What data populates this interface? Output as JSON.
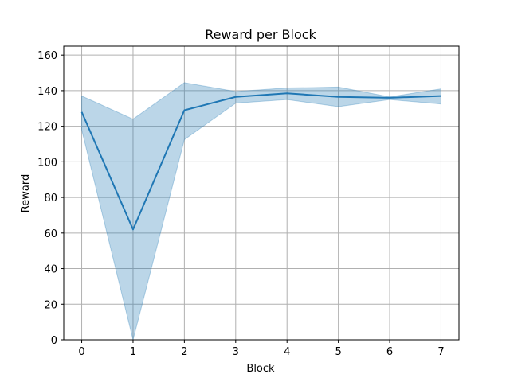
{
  "chart_data": {
    "type": "line",
    "title": "Reward per Block",
    "xlabel": "Block",
    "ylabel": "Reward",
    "x": [
      0,
      1,
      2,
      3,
      4,
      5,
      6,
      7
    ],
    "xlim": [
      -0.35,
      7.35
    ],
    "ylim": [
      0,
      165
    ],
    "xticks": [
      0,
      1,
      2,
      3,
      4,
      5,
      6,
      7
    ],
    "yticks": [
      0,
      20,
      40,
      60,
      80,
      100,
      120,
      140,
      160
    ],
    "grid": true,
    "series": [
      {
        "values": [
          128,
          62,
          129,
          136.5,
          138.5,
          136.5,
          136,
          137
        ],
        "band_upper": [
          137,
          124,
          144.5,
          139.5,
          141.5,
          142,
          136.5,
          141
        ],
        "band_lower": [
          118,
          0,
          112.5,
          133,
          135,
          131,
          135,
          132.5
        ]
      }
    ],
    "colors": {
      "line": "#1f77b4",
      "band": "#1f77b4",
      "grid": "#b0b0b0"
    }
  }
}
